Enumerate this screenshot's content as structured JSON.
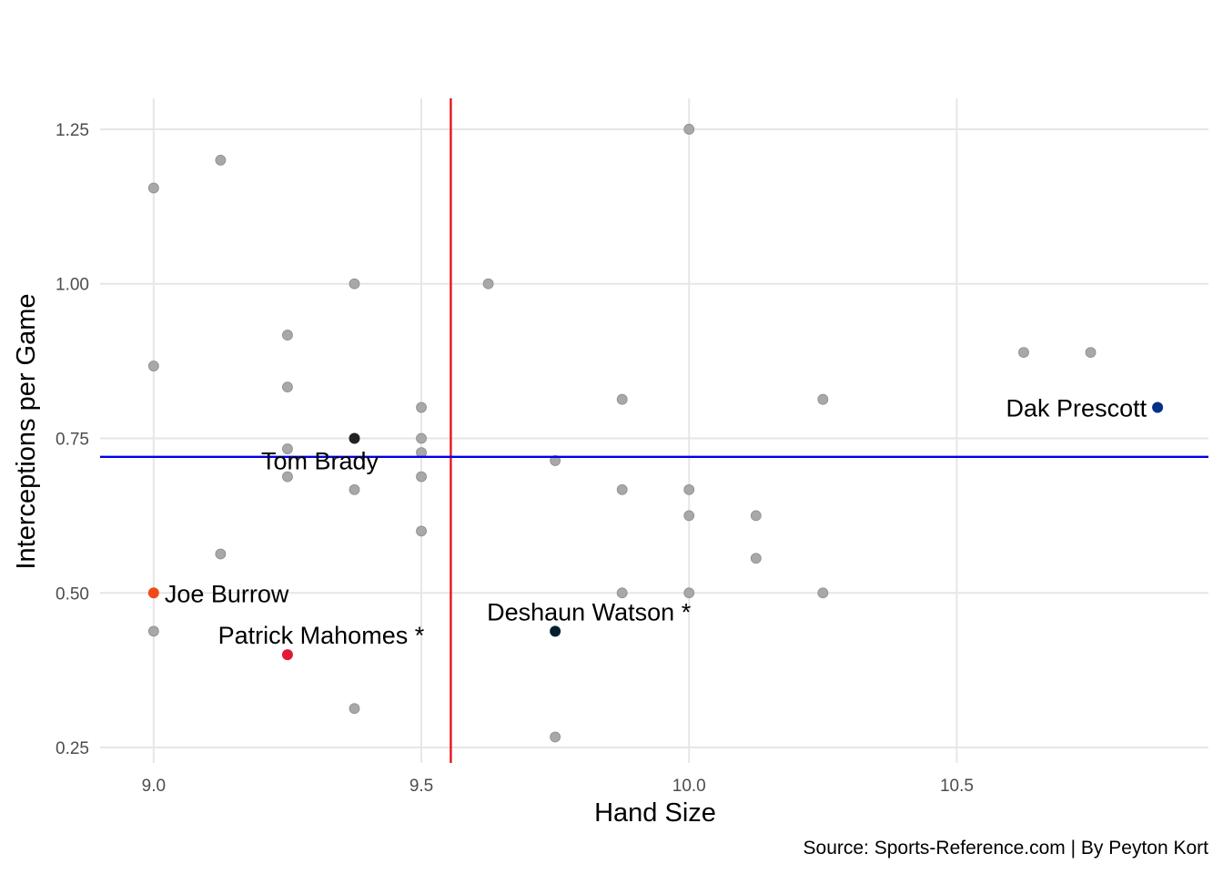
{
  "chart_data": {
    "type": "scatter",
    "title": "",
    "xlabel": "Hand Size",
    "ylabel": "Interceptions per Game",
    "caption": "Source: Sports-Reference.com | By Peyton Kort",
    "xlim": [
      8.9,
      10.97
    ],
    "ylim": [
      0.225,
      1.3
    ],
    "x_ticks": [
      {
        "value": 9.0,
        "label": "9.0"
      },
      {
        "value": 9.5,
        "label": "9.5"
      },
      {
        "value": 10.0,
        "label": "10.0"
      },
      {
        "value": 10.5,
        "label": "10.5"
      }
    ],
    "y_ticks": [
      {
        "value": 0.25,
        "label": "0.25"
      },
      {
        "value": 0.5,
        "label": "0.50"
      },
      {
        "value": 0.75,
        "label": "0.75"
      },
      {
        "value": 1.0,
        "label": "1.00"
      },
      {
        "value": 1.25,
        "label": "1.25"
      }
    ],
    "grid": true,
    "reference_lines": {
      "vertical_x": 9.555,
      "vertical_color": "#e8141c",
      "horizontal_y": 0.72,
      "horizontal_color": "#0000e6"
    },
    "default_point_color": "#a8a8a8",
    "points": [
      {
        "x": 9.0,
        "y": 1.155
      },
      {
        "x": 9.125,
        "y": 1.2
      },
      {
        "x": 10.0,
        "y": 1.25
      },
      {
        "x": 9.375,
        "y": 1.0
      },
      {
        "x": 9.625,
        "y": 1.0
      },
      {
        "x": 9.25,
        "y": 0.917
      },
      {
        "x": 9.0,
        "y": 0.867
      },
      {
        "x": 9.25,
        "y": 0.833
      },
      {
        "x": 10.625,
        "y": 0.889
      },
      {
        "x": 10.75,
        "y": 0.889
      },
      {
        "x": 9.875,
        "y": 0.813
      },
      {
        "x": 10.25,
        "y": 0.813
      },
      {
        "x": 9.5,
        "y": 0.8
      },
      {
        "x": 9.5,
        "y": 0.75
      },
      {
        "x": 9.25,
        "y": 0.733
      },
      {
        "x": 9.5,
        "y": 0.727
      },
      {
        "x": 9.75,
        "y": 0.714
      },
      {
        "x": 9.25,
        "y": 0.688
      },
      {
        "x": 9.5,
        "y": 0.688
      },
      {
        "x": 9.375,
        "y": 0.667
      },
      {
        "x": 9.875,
        "y": 0.667
      },
      {
        "x": 10.0,
        "y": 0.667
      },
      {
        "x": 10.0,
        "y": 0.625
      },
      {
        "x": 10.125,
        "y": 0.625
      },
      {
        "x": 9.5,
        "y": 0.6
      },
      {
        "x": 9.125,
        "y": 0.563
      },
      {
        "x": 10.125,
        "y": 0.556
      },
      {
        "x": 9.875,
        "y": 0.5
      },
      {
        "x": 10.0,
        "y": 0.5
      },
      {
        "x": 10.25,
        "y": 0.5
      },
      {
        "x": 9.0,
        "y": 0.438
      },
      {
        "x": 9.375,
        "y": 0.313
      },
      {
        "x": 9.75,
        "y": 0.267
      }
    ],
    "highlighted": [
      {
        "label": "Dak Prescott",
        "x": 10.875,
        "y": 0.8,
        "color": "#013087",
        "anchor": "end"
      },
      {
        "label": "Tom Brady",
        "x": 9.375,
        "y": 0.75,
        "color": "#222222",
        "anchor": "below"
      },
      {
        "label": "Joe Burrow",
        "x": 9.0,
        "y": 0.5,
        "color": "#f04a1a",
        "anchor": "start"
      },
      {
        "label": "Patrick Mahomes *",
        "x": 9.25,
        "y": 0.4,
        "color": "#e31837",
        "anchor": "above"
      },
      {
        "label": "Deshaun Watson *",
        "x": 9.75,
        "y": 0.438,
        "color": "#03202f",
        "anchor": "above"
      }
    ]
  }
}
